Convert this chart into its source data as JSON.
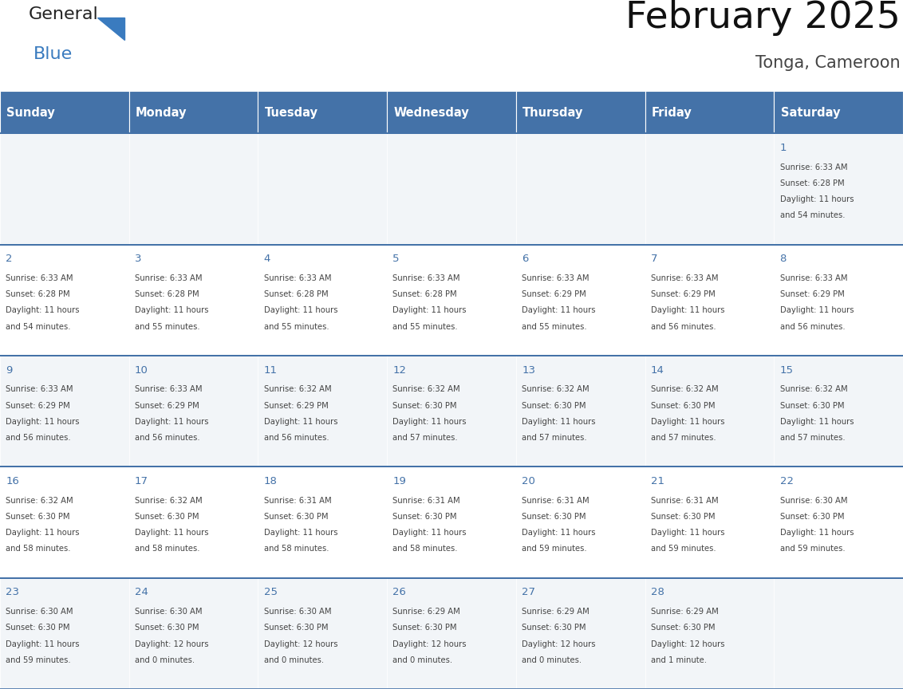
{
  "title": "February 2025",
  "subtitle": "Tonga, Cameroon",
  "header_bg": "#4472a8",
  "header_text_color": "#ffffff",
  "cell_bg_light": "#f2f5f8",
  "cell_bg_white": "#ffffff",
  "day_number_color": "#4472a8",
  "text_color": "#444444",
  "border_color": "#4472a8",
  "days_of_week": [
    "Sunday",
    "Monday",
    "Tuesday",
    "Wednesday",
    "Thursday",
    "Friday",
    "Saturday"
  ],
  "calendar_data": [
    [
      null,
      null,
      null,
      null,
      null,
      null,
      {
        "day": "1",
        "sunrise": "6:33 AM",
        "sunset": "6:28 PM",
        "daylight_line1": "Daylight: 11 hours",
        "daylight_line2": "and 54 minutes."
      }
    ],
    [
      {
        "day": "2",
        "sunrise": "6:33 AM",
        "sunset": "6:28 PM",
        "daylight_line1": "Daylight: 11 hours",
        "daylight_line2": "and 54 minutes."
      },
      {
        "day": "3",
        "sunrise": "6:33 AM",
        "sunset": "6:28 PM",
        "daylight_line1": "Daylight: 11 hours",
        "daylight_line2": "and 55 minutes."
      },
      {
        "day": "4",
        "sunrise": "6:33 AM",
        "sunset": "6:28 PM",
        "daylight_line1": "Daylight: 11 hours",
        "daylight_line2": "and 55 minutes."
      },
      {
        "day": "5",
        "sunrise": "6:33 AM",
        "sunset": "6:28 PM",
        "daylight_line1": "Daylight: 11 hours",
        "daylight_line2": "and 55 minutes."
      },
      {
        "day": "6",
        "sunrise": "6:33 AM",
        "sunset": "6:29 PM",
        "daylight_line1": "Daylight: 11 hours",
        "daylight_line2": "and 55 minutes."
      },
      {
        "day": "7",
        "sunrise": "6:33 AM",
        "sunset": "6:29 PM",
        "daylight_line1": "Daylight: 11 hours",
        "daylight_line2": "and 56 minutes."
      },
      {
        "day": "8",
        "sunrise": "6:33 AM",
        "sunset": "6:29 PM",
        "daylight_line1": "Daylight: 11 hours",
        "daylight_line2": "and 56 minutes."
      }
    ],
    [
      {
        "day": "9",
        "sunrise": "6:33 AM",
        "sunset": "6:29 PM",
        "daylight_line1": "Daylight: 11 hours",
        "daylight_line2": "and 56 minutes."
      },
      {
        "day": "10",
        "sunrise": "6:33 AM",
        "sunset": "6:29 PM",
        "daylight_line1": "Daylight: 11 hours",
        "daylight_line2": "and 56 minutes."
      },
      {
        "day": "11",
        "sunrise": "6:32 AM",
        "sunset": "6:29 PM",
        "daylight_line1": "Daylight: 11 hours",
        "daylight_line2": "and 56 minutes."
      },
      {
        "day": "12",
        "sunrise": "6:32 AM",
        "sunset": "6:30 PM",
        "daylight_line1": "Daylight: 11 hours",
        "daylight_line2": "and 57 minutes."
      },
      {
        "day": "13",
        "sunrise": "6:32 AM",
        "sunset": "6:30 PM",
        "daylight_line1": "Daylight: 11 hours",
        "daylight_line2": "and 57 minutes."
      },
      {
        "day": "14",
        "sunrise": "6:32 AM",
        "sunset": "6:30 PM",
        "daylight_line1": "Daylight: 11 hours",
        "daylight_line2": "and 57 minutes."
      },
      {
        "day": "15",
        "sunrise": "6:32 AM",
        "sunset": "6:30 PM",
        "daylight_line1": "Daylight: 11 hours",
        "daylight_line2": "and 57 minutes."
      }
    ],
    [
      {
        "day": "16",
        "sunrise": "6:32 AM",
        "sunset": "6:30 PM",
        "daylight_line1": "Daylight: 11 hours",
        "daylight_line2": "and 58 minutes."
      },
      {
        "day": "17",
        "sunrise": "6:32 AM",
        "sunset": "6:30 PM",
        "daylight_line1": "Daylight: 11 hours",
        "daylight_line2": "and 58 minutes."
      },
      {
        "day": "18",
        "sunrise": "6:31 AM",
        "sunset": "6:30 PM",
        "daylight_line1": "Daylight: 11 hours",
        "daylight_line2": "and 58 minutes."
      },
      {
        "day": "19",
        "sunrise": "6:31 AM",
        "sunset": "6:30 PM",
        "daylight_line1": "Daylight: 11 hours",
        "daylight_line2": "and 58 minutes."
      },
      {
        "day": "20",
        "sunrise": "6:31 AM",
        "sunset": "6:30 PM",
        "daylight_line1": "Daylight: 11 hours",
        "daylight_line2": "and 59 minutes."
      },
      {
        "day": "21",
        "sunrise": "6:31 AM",
        "sunset": "6:30 PM",
        "daylight_line1": "Daylight: 11 hours",
        "daylight_line2": "and 59 minutes."
      },
      {
        "day": "22",
        "sunrise": "6:30 AM",
        "sunset": "6:30 PM",
        "daylight_line1": "Daylight: 11 hours",
        "daylight_line2": "and 59 minutes."
      }
    ],
    [
      {
        "day": "23",
        "sunrise": "6:30 AM",
        "sunset": "6:30 PM",
        "daylight_line1": "Daylight: 11 hours",
        "daylight_line2": "and 59 minutes."
      },
      {
        "day": "24",
        "sunrise": "6:30 AM",
        "sunset": "6:30 PM",
        "daylight_line1": "Daylight: 12 hours",
        "daylight_line2": "and 0 minutes."
      },
      {
        "day": "25",
        "sunrise": "6:30 AM",
        "sunset": "6:30 PM",
        "daylight_line1": "Daylight: 12 hours",
        "daylight_line2": "and 0 minutes."
      },
      {
        "day": "26",
        "sunrise": "6:29 AM",
        "sunset": "6:30 PM",
        "daylight_line1": "Daylight: 12 hours",
        "daylight_line2": "and 0 minutes."
      },
      {
        "day": "27",
        "sunrise": "6:29 AM",
        "sunset": "6:30 PM",
        "daylight_line1": "Daylight: 12 hours",
        "daylight_line2": "and 0 minutes."
      },
      {
        "day": "28",
        "sunrise": "6:29 AM",
        "sunset": "6:30 PM",
        "daylight_line1": "Daylight: 12 hours",
        "daylight_line2": "and 1 minute."
      },
      null
    ]
  ]
}
